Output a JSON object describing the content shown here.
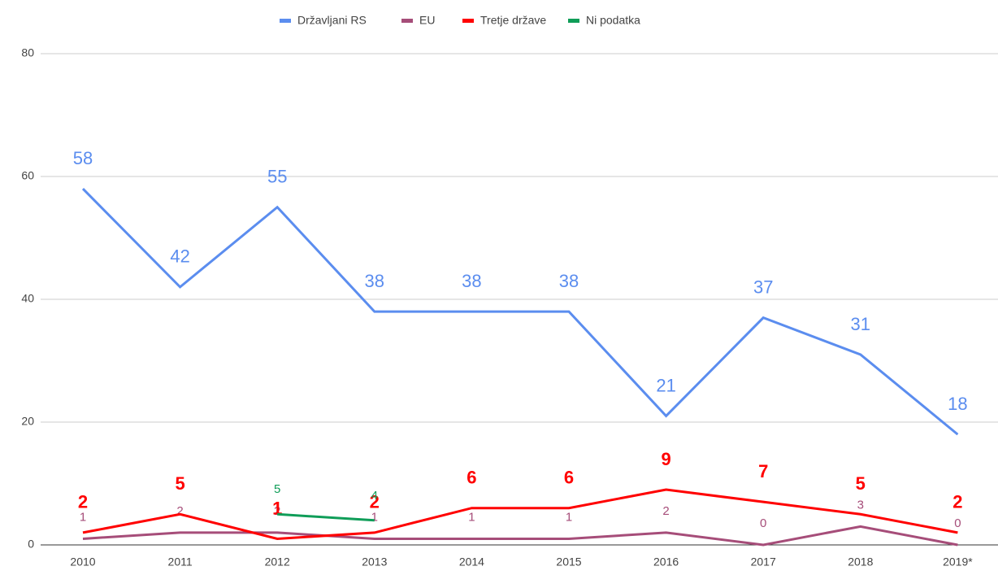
{
  "chart_data": {
    "type": "line",
    "categories": [
      "2010",
      "2011",
      "2012",
      "2013",
      "2014",
      "2015",
      "2016",
      "2017",
      "2018",
      "2019*"
    ],
    "series": [
      {
        "name": "Državljani RS",
        "color": "#5b8def",
        "values": [
          58,
          42,
          55,
          38,
          38,
          38,
          21,
          37,
          31,
          18
        ]
      },
      {
        "name": "EU",
        "color": "#a64d79",
        "values": [
          1,
          2,
          2,
          1,
          1,
          1,
          2,
          0,
          3,
          0
        ]
      },
      {
        "name": "Tretje države",
        "color": "#ff0000",
        "values": [
          2,
          5,
          1,
          2,
          6,
          6,
          9,
          7,
          5,
          2
        ]
      },
      {
        "name": "Ni podatka",
        "color": "#0f9d58",
        "values": [
          null,
          null,
          5,
          4,
          null,
          null,
          null,
          null,
          null,
          null
        ]
      }
    ],
    "ylim": [
      0,
      80
    ],
    "yticks": [
      0,
      20,
      40,
      60,
      80
    ],
    "grid": true,
    "legend": "top"
  }
}
